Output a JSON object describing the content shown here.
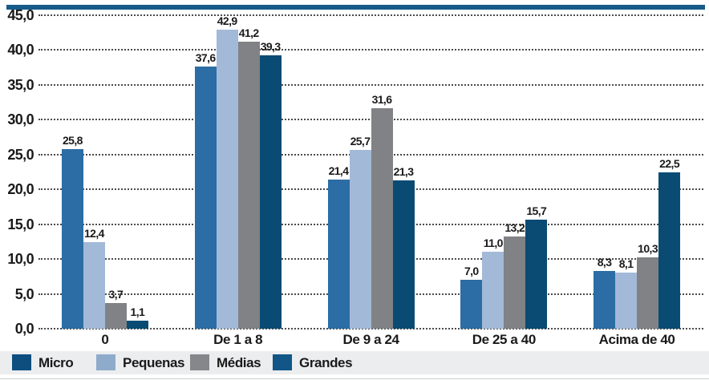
{
  "chart_data": {
    "type": "bar",
    "title": "",
    "categories": [
      "0",
      "De 1 a 8",
      "De 9 a 24",
      "De 25 a 40",
      "Acima de 40"
    ],
    "series": [
      {
        "name": "Micro",
        "color": "#2B6DA4",
        "legend_color": "#0D4E7E",
        "values": [
          25.8,
          37.6,
          21.4,
          7.0,
          8.3
        ],
        "labels": [
          "25,8",
          "37,6",
          "21,4",
          "7,0",
          "8,3"
        ]
      },
      {
        "name": "Pequenas",
        "color": "#A3B9D8",
        "legend_color": "#8FABCC",
        "values": [
          12.4,
          42.9,
          25.7,
          11.0,
          8.1
        ],
        "labels": [
          "12,4",
          "42,9",
          "25,7",
          "11,0",
          "8,1"
        ]
      },
      {
        "name": "Médias",
        "color": "#808285",
        "legend_color": "#85878A",
        "values": [
          3.7,
          41.2,
          31.6,
          13.2,
          10.3
        ],
        "labels": [
          "3,7",
          "41,2",
          "31,6",
          "13,2",
          "10,3"
        ]
      },
      {
        "name": "Grandes",
        "color": "#0A4B74",
        "legend_color": "#115687",
        "values": [
          1.1,
          39.3,
          21.3,
          15.7,
          22.5
        ],
        "labels": [
          "1,1",
          "39,3",
          "21,3",
          "15,7",
          "22,5"
        ]
      }
    ],
    "yticks": [
      "45,0",
      "40,0",
      "35,0",
      "30,0",
      "25,0",
      "20,0",
      "15,0",
      "10,0",
      "5,0",
      "0,0"
    ],
    "ylim": [
      0,
      45
    ],
    "xlabel": "",
    "ylabel": "",
    "grid": "horizontal-dotted",
    "legend_position": "bottom"
  },
  "style": {
    "top_border_color": "#175B89",
    "legend_band_color": "#ECEDEF",
    "grid_dot_color": "#4B4B4B",
    "text_color": "#1A1A1A"
  }
}
